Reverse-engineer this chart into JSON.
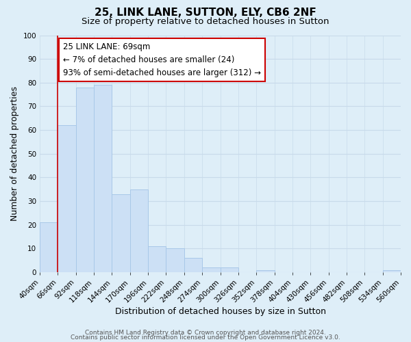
{
  "title": "25, LINK LANE, SUTTON, ELY, CB6 2NF",
  "subtitle": "Size of property relative to detached houses in Sutton",
  "xlabel": "Distribution of detached houses by size in Sutton",
  "ylabel": "Number of detached properties",
  "bar_color": "#cce0f5",
  "bar_edge_color": "#a8c8e8",
  "grid_color": "#c8daea",
  "background_color": "#deeef8",
  "bins_labels": [
    "40sqm",
    "66sqm",
    "92sqm",
    "118sqm",
    "144sqm",
    "170sqm",
    "196sqm",
    "222sqm",
    "248sqm",
    "274sqm",
    "300sqm",
    "326sqm",
    "352sqm",
    "378sqm",
    "404sqm",
    "430sqm",
    "456sqm",
    "482sqm",
    "508sqm",
    "534sqm",
    "560sqm"
  ],
  "values": [
    21,
    62,
    78,
    79,
    33,
    35,
    11,
    10,
    6,
    2,
    2,
    0,
    1,
    0,
    0,
    0,
    0,
    0,
    0,
    1
  ],
  "ylim": [
    0,
    100
  ],
  "annotation_title": "25 LINK LANE: 69sqm",
  "annotation_line1": "← 7% of detached houses are smaller (24)",
  "annotation_line2": "93% of semi-detached houses are larger (312) →",
  "footer1": "Contains HM Land Registry data © Crown copyright and database right 2024.",
  "footer2": "Contains public sector information licensed under the Open Government Licence v3.0.",
  "annotation_box_facecolor": "#ffffff",
  "annotation_box_edgecolor": "#cc0000",
  "property_line_color": "#cc0000",
  "title_fontsize": 11,
  "subtitle_fontsize": 9.5,
  "axis_label_fontsize": 9,
  "tick_fontsize": 7.5,
  "annotation_fontsize": 8.5,
  "footer_fontsize": 6.5
}
